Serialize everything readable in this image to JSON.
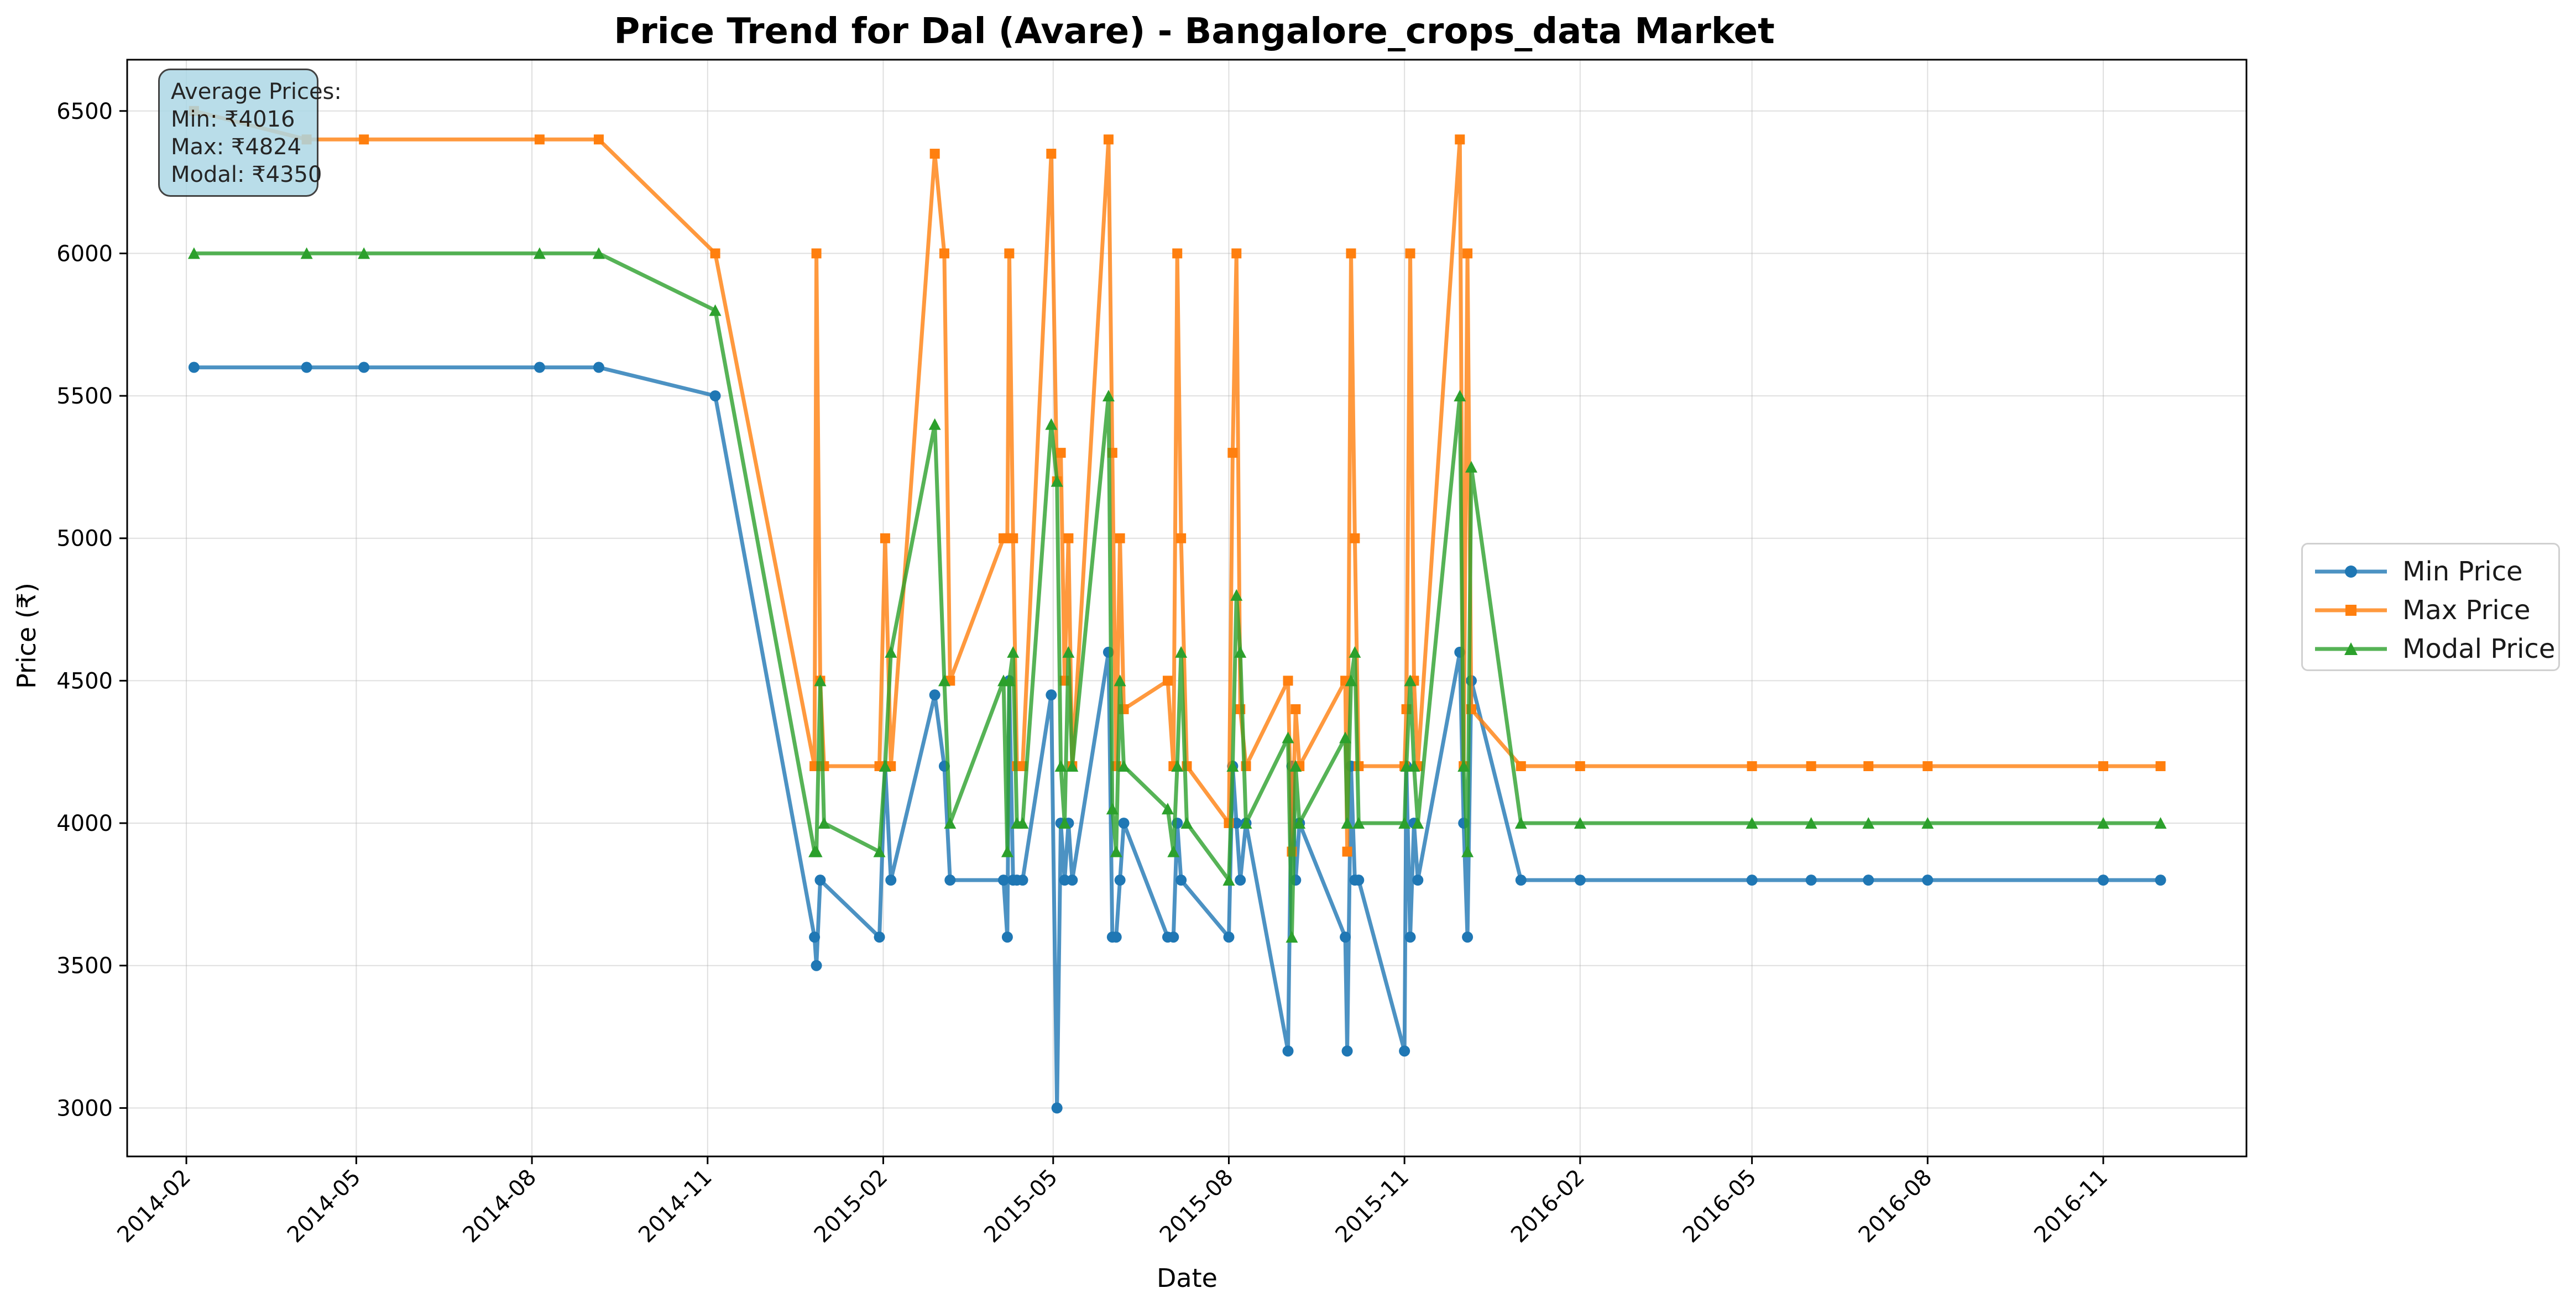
{
  "chart_data": {
    "type": "line",
    "title": "Price Trend for Dal (Avare) - Bangalore_crops_data Market",
    "xlabel": "Date",
    "ylabel": "Price (₹)",
    "x_type": "date",
    "xlim": [
      "2014-01-01",
      "2017-01-15"
    ],
    "ylim": [
      2830,
      6680
    ],
    "x_ticks": [
      "2014-02",
      "2014-05",
      "2014-08",
      "2014-11",
      "2015-02",
      "2015-05",
      "2015-08",
      "2015-11",
      "2016-02",
      "2016-05",
      "2016-08",
      "2016-11"
    ],
    "y_ticks": [
      3000,
      3500,
      4000,
      4500,
      5000,
      5500,
      6000,
      6500
    ],
    "grid": true,
    "legend_position": "outside-right",
    "x": [
      "2014-02-05",
      "2014-04-05",
      "2014-05-05",
      "2014-08-05",
      "2014-09-05",
      "2014-11-05",
      "2014-12-27",
      "2014-12-28",
      "2014-12-30",
      "2015-01-01",
      "2015-01-30",
      "2015-02-02",
      "2015-02-05",
      "2015-02-28",
      "2015-03-05",
      "2015-03-08",
      "2015-04-05",
      "2015-04-07",
      "2015-04-08",
      "2015-04-10",
      "2015-04-12",
      "2015-04-15",
      "2015-04-30",
      "2015-05-03",
      "2015-05-05",
      "2015-05-07",
      "2015-05-09",
      "2015-05-11",
      "2015-05-30",
      "2015-06-01",
      "2015-06-03",
      "2015-06-05",
      "2015-06-07",
      "2015-06-30",
      "2015-07-03",
      "2015-07-05",
      "2015-07-07",
      "2015-07-10",
      "2015-08-01",
      "2015-08-03",
      "2015-08-05",
      "2015-08-07",
      "2015-08-10",
      "2015-09-01",
      "2015-09-03",
      "2015-09-05",
      "2015-09-07",
      "2015-10-01",
      "2015-10-02",
      "2015-10-04",
      "2015-10-06",
      "2015-10-08",
      "2015-11-01",
      "2015-11-02",
      "2015-11-04",
      "2015-11-06",
      "2015-11-08",
      "2015-11-30",
      "2015-12-02",
      "2015-12-04",
      "2015-12-06",
      "2016-01-01",
      "2016-02-01",
      "2016-05-01",
      "2016-06-01",
      "2016-07-01",
      "2016-08-01",
      "2016-11-01",
      "2016-12-01"
    ],
    "series": [
      {
        "name": "Min Price",
        "color": "#1f77b4",
        "marker": "circle",
        "values": [
          5600,
          5600,
          5600,
          5600,
          5600,
          5500,
          3600,
          3500,
          3800,
          null,
          3600,
          4200,
          3800,
          4450,
          4200,
          3800,
          3800,
          3600,
          4500,
          3800,
          3800,
          3800,
          4450,
          3000,
          4000,
          3800,
          4000,
          3800,
          4600,
          3600,
          3600,
          3800,
          4000,
          3600,
          3600,
          4000,
          3800,
          null,
          3600,
          4200,
          4000,
          3800,
          4000,
          3200,
          4200,
          3800,
          4000,
          3600,
          3200,
          4200,
          3800,
          3800,
          3200,
          4200,
          3600,
          4000,
          3800,
          4600,
          4000,
          3600,
          4500,
          3800,
          3800,
          3800,
          3800,
          3800,
          3800,
          3800,
          3800
        ]
      },
      {
        "name": "Max Price",
        "color": "#ff7f0e",
        "marker": "square",
        "values": [
          6500,
          6400,
          6400,
          6400,
          6400,
          6000,
          4200,
          6000,
          4500,
          4200,
          4200,
          5000,
          4200,
          6350,
          6000,
          4500,
          5000,
          5000,
          6000,
          5000,
          4200,
          4200,
          6350,
          5200,
          5300,
          4500,
          5000,
          4200,
          6400,
          5300,
          4200,
          5000,
          4400,
          4500,
          4200,
          6000,
          5000,
          4200,
          4000,
          5300,
          6000,
          4400,
          4200,
          4500,
          3900,
          4400,
          4200,
          4500,
          3900,
          6000,
          5000,
          4200,
          4200,
          4400,
          6000,
          4500,
          4200,
          6400,
          4200,
          6000,
          4400,
          4200,
          4200,
          4200,
          4200,
          4200,
          4200,
          4200,
          4200
        ]
      },
      {
        "name": "Modal Price",
        "color": "#2ca02c",
        "marker": "triangle",
        "values": [
          6000,
          6000,
          6000,
          6000,
          6000,
          5800,
          3900,
          3900,
          4500,
          4000,
          3900,
          4200,
          4600,
          5400,
          4500,
          4000,
          4500,
          3900,
          4500,
          4600,
          4000,
          4000,
          5400,
          5200,
          4200,
          4000,
          4600,
          4200,
          5500,
          4050,
          3900,
          4500,
          4200,
          4050,
          3900,
          4200,
          4600,
          4000,
          3800,
          4200,
          4800,
          4600,
          4000,
          4300,
          3600,
          4200,
          4000,
          4300,
          4000,
          4500,
          4600,
          4000,
          4000,
          4200,
          4500,
          4200,
          4000,
          5500,
          4200,
          3900,
          5250,
          4000,
          4000,
          4000,
          4000,
          4000,
          4000,
          4000,
          4000
        ]
      }
    ]
  },
  "legend": {
    "items": [
      {
        "label": "Min Price"
      },
      {
        "label": "Max Price"
      },
      {
        "label": "Modal Price"
      }
    ]
  },
  "summary": {
    "heading": "Average Prices:",
    "min": "Min: ₹4016",
    "max": "Max: ₹4824",
    "modal": "Modal: ₹4350"
  }
}
